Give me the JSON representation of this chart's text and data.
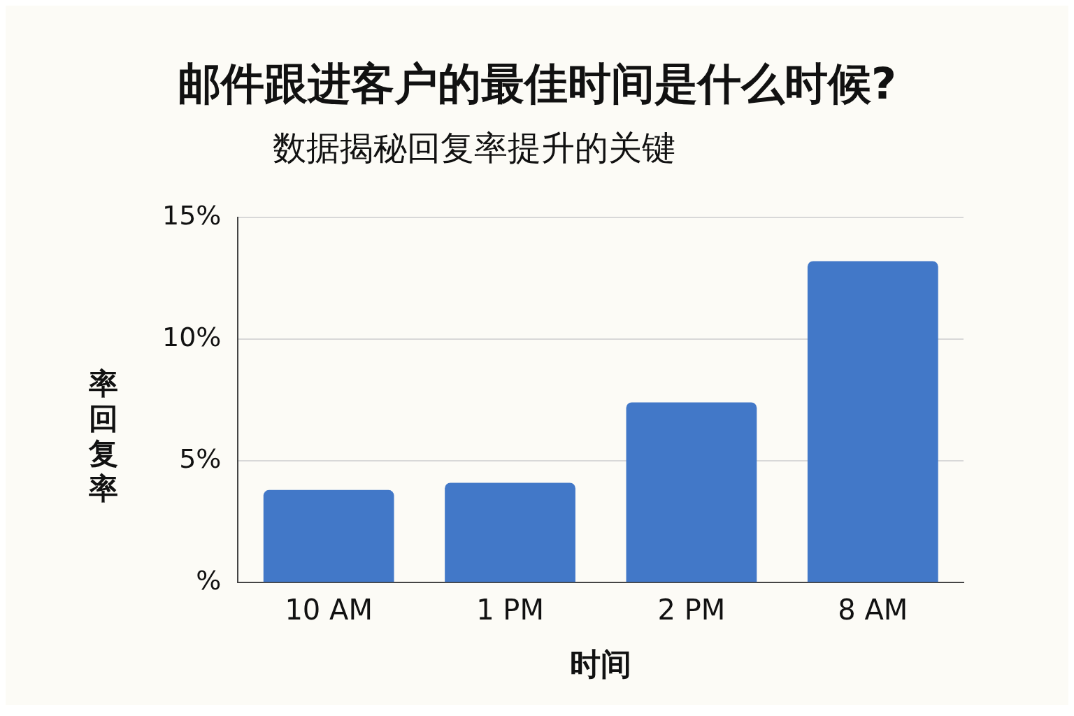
{
  "chart_data": {
    "type": "bar",
    "title": "邮件跟进客户的最佳时间是什么时候?",
    "subtitle": "数据揭秘回复率提升的关键",
    "xlabel": "时间",
    "ylabel": "率回复率",
    "categories": [
      "10 AM",
      "1 PM",
      "2 PM",
      "8 AM"
    ],
    "values": [
      3.8,
      4.1,
      7.4,
      13.2
    ],
    "color": "#4278c8",
    "ylim": [
      0,
      15
    ],
    "yticks": [
      {
        "value": 0,
        "label": "%"
      },
      {
        "value": 5,
        "label": "5%"
      },
      {
        "value": 10,
        "label": "10%"
      },
      {
        "value": 15,
        "label": "15%"
      }
    ],
    "grid": "y",
    "legend": false
  }
}
